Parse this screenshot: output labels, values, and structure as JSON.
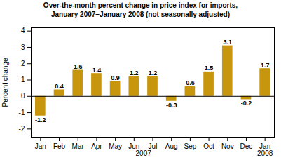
{
  "chart_data": {
    "type": "bar",
    "title": "Over-the-month percent change in price index for imports,\nJanuary 2007–January 2008 (not seasonally adjusted)",
    "categories": [
      "Jan",
      "Feb",
      "Mar",
      "Apr",
      "May",
      "Jun",
      "Jul",
      "Aug",
      "Sep",
      "Oct",
      "Nov",
      "Dec",
      "Jan"
    ],
    "values": [
      -1.2,
      0.4,
      1.6,
      1.4,
      0.9,
      1.2,
      1.2,
      -0.3,
      0.6,
      1.5,
      3.1,
      -0.2,
      1.7
    ],
    "color": "#C8960C",
    "ylabel": "Percent change",
    "ylim": [
      -2.5,
      4.2
    ],
    "yticks": [
      -2,
      -1,
      0,
      1,
      2,
      3,
      4
    ],
    "grid": false,
    "data_labels": true,
    "annotations": [
      {
        "text": "2007",
        "x": 5.5
      },
      {
        "text": "2008",
        "x": 12
      }
    ]
  }
}
